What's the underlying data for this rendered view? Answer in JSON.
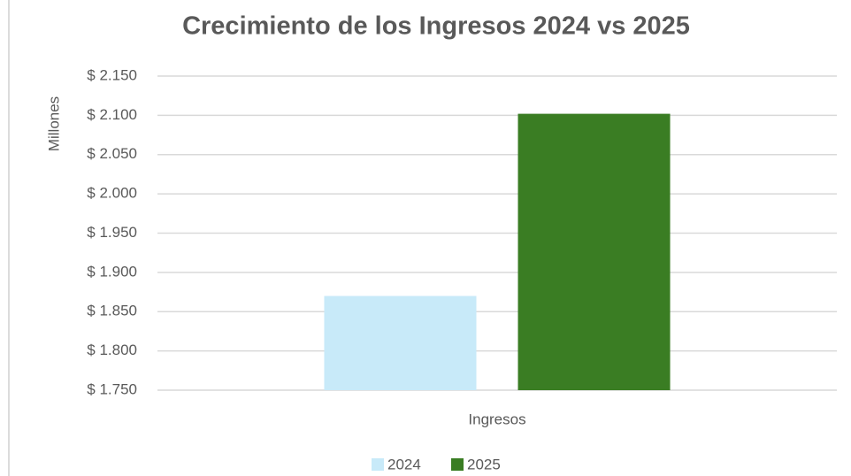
{
  "chart_data": {
    "type": "bar",
    "title": "Crecimiento de los Ingresos 2024 vs 2025",
    "y_axis_label": "Millones",
    "categories": [
      "Ingresos"
    ],
    "series": [
      {
        "name": "2024",
        "color": "#c8eaf9",
        "values": [
          1870
        ]
      },
      {
        "name": "2025",
        "color": "#3a7d23",
        "values": [
          2102
        ]
      }
    ],
    "ylim": [
      1750,
      2150
    ],
    "yticks": [
      {
        "value": 1750,
        "label": "$ 1.750"
      },
      {
        "value": 1800,
        "label": "$ 1.800"
      },
      {
        "value": 1850,
        "label": "$ 1.850"
      },
      {
        "value": 1900,
        "label": "$ 1.900"
      },
      {
        "value": 1950,
        "label": "$ 1.950"
      },
      {
        "value": 2000,
        "label": "$ 2.000"
      },
      {
        "value": 2050,
        "label": "$ 2.050"
      },
      {
        "value": 2100,
        "label": "$ 2.100"
      },
      {
        "value": 2150,
        "label": "$ 2.150"
      }
    ],
    "grid": true,
    "legend": "bottom"
  }
}
